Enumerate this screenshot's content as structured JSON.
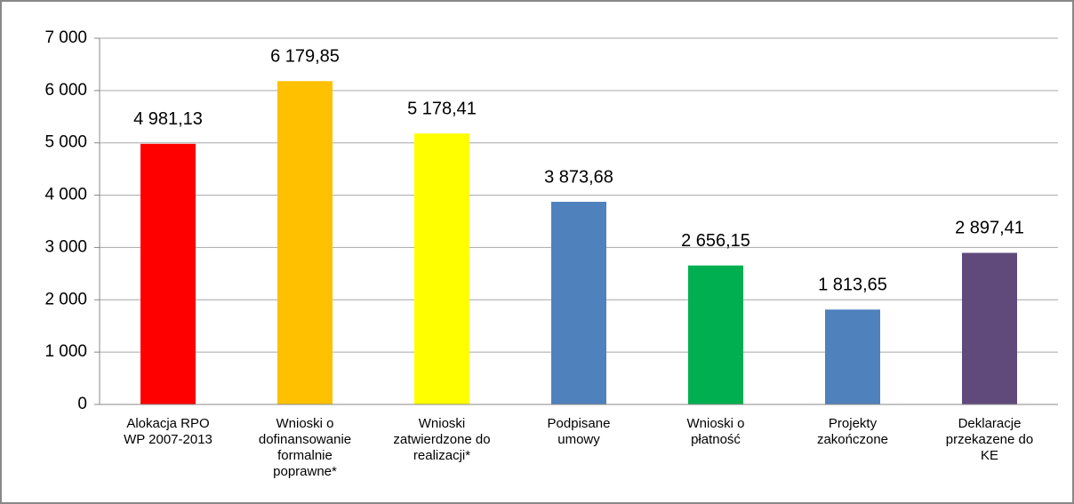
{
  "chart_data": {
    "type": "bar",
    "categories": [
      "Alokacja RPO\nWP 2007-2013",
      "Wnioski o\ndofinansowanie\nformalnie\npoprawne*",
      "Wnioski\nzatwierdzone do\nrealizacji*",
      "Podpisane\numowy",
      "Wnioski o\npłatność",
      "Projekty\nzakończone",
      "Deklaracje\nprzekazene do\nKE"
    ],
    "values": [
      4981.13,
      6179.85,
      5178.41,
      3873.68,
      2656.15,
      1813.65,
      2897.41
    ],
    "value_labels": [
      "4 981,13",
      "6 179,85",
      "5 178,41",
      "3 873,68",
      "2 656,15",
      "1 813,65",
      "2 897,41"
    ],
    "colors": [
      "#ff0000",
      "#ffc000",
      "#ffff00",
      "#4f81bd",
      "#00b050",
      "#4f81bd",
      "#604a7b"
    ],
    "ylim": [
      0,
      7000
    ],
    "yticks": [
      0,
      {
        "value": 1000,
        "label": "1 000"
      },
      {
        "value": 2000,
        "label": "2 000"
      },
      {
        "value": 3000,
        "label": "3 000"
      },
      {
        "value": 4000,
        "label": "4 000"
      },
      {
        "value": 5000,
        "label": "5 000"
      },
      {
        "value": 6000,
        "label": "6 000"
      },
      {
        "value": 7000,
        "label": "7 000"
      }
    ],
    "grid": true
  }
}
